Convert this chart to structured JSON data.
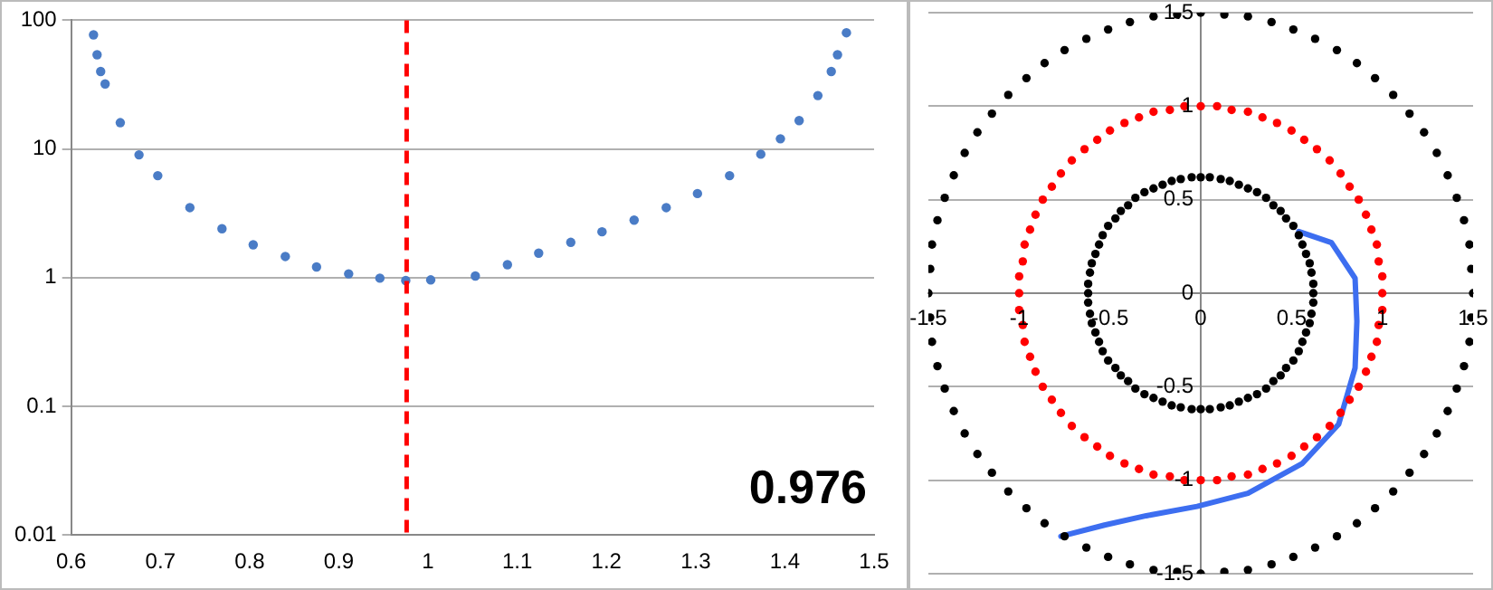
{
  "chart_data": [
    {
      "type": "scatter",
      "log": "y",
      "grid": "y",
      "legend": false,
      "xlim": [
        0.6,
        1.5
      ],
      "xticks": [
        0.6,
        0.7,
        0.8,
        0.9,
        1,
        1.1,
        1.2,
        1.3,
        1.4,
        1.5
      ],
      "ylim": [
        0.01,
        100
      ],
      "yticks": [
        0.01,
        0.1,
        1,
        10,
        100
      ],
      "series": [
        {
          "color": "#4a7cc6",
          "marker": "circle",
          "x": [
            0.625,
            0.629,
            0.633,
            0.638,
            0.655,
            0.676,
            0.697,
            0.733,
            0.769,
            0.804,
            0.84,
            0.875,
            0.911,
            0.946,
            0.975,
            1.003,
            1.053,
            1.089,
            1.124,
            1.16,
            1.195,
            1.231,
            1.267,
            1.302,
            1.338,
            1.373,
            1.395,
            1.416,
            1.437,
            1.452,
            1.459,
            1.469
          ],
          "values": [
            77,
            54,
            40,
            32,
            16,
            9,
            6.2,
            3.5,
            2.4,
            1.8,
            1.46,
            1.21,
            1.07,
            0.99,
            0.95,
            0.96,
            1.03,
            1.26,
            1.55,
            1.88,
            2.27,
            2.8,
            3.5,
            4.5,
            6.2,
            9.1,
            12,
            16.6,
            26,
            40,
            54,
            80
          ]
        }
      ],
      "ref_lines": [
        {
          "axis": "x",
          "value": 0.976,
          "color": "#ff0000",
          "line_style": "dashed"
        }
      ],
      "annotations": [
        "0.976"
      ]
    },
    {
      "type": "scatter",
      "grid": "y",
      "legend": false,
      "xlim": [
        -1.5,
        1.5
      ],
      "xticks": [
        -1.5,
        -1,
        -0.5,
        0,
        0.5,
        1,
        1.5
      ],
      "ylim": [
        -1.5,
        1.5
      ],
      "yticks": [
        -1.5,
        -1,
        -0.5,
        0,
        0.5,
        1,
        1.5
      ],
      "series": [
        {
          "type": "scatter",
          "color": "#000000",
          "marker": "circle",
          "x": [
            1.5,
            1.49,
            1.48,
            1.45,
            1.41,
            1.36,
            1.3,
            1.23,
            1.15,
            1.06,
            0.96,
            0.86,
            0.75,
            0.63,
            0.51,
            0.39,
            0.26,
            0.13,
            0,
            -0.13,
            -0.26,
            -0.39,
            -0.51,
            -0.63,
            -0.75,
            -0.86,
            -0.96,
            -1.06,
            -1.15,
            -1.23,
            -1.3,
            -1.36,
            -1.41,
            -1.45,
            -1.48,
            -1.49,
            -1.5,
            -1.49,
            -1.48,
            -1.45,
            -1.41,
            -1.36,
            -1.3,
            -1.23,
            -1.15,
            -1.06,
            -0.96,
            -0.86,
            -0.75,
            -0.63,
            -0.51,
            -0.39,
            -0.26,
            -0.13,
            0,
            0.13,
            0.26,
            0.39,
            0.51,
            0.63,
            0.75,
            0.86,
            0.96,
            1.06,
            1.15,
            1.23,
            1.3,
            1.36,
            1.41,
            1.45,
            1.48,
            1.49
          ],
          "values": [
            0,
            0.13,
            0.26,
            0.39,
            0.51,
            0.63,
            0.75,
            0.86,
            0.96,
            1.06,
            1.15,
            1.23,
            1.3,
            1.36,
            1.41,
            1.45,
            1.48,
            1.49,
            1.5,
            1.49,
            1.48,
            1.45,
            1.41,
            1.36,
            1.3,
            1.23,
            1.15,
            1.06,
            0.96,
            0.86,
            0.75,
            0.63,
            0.51,
            0.39,
            0.26,
            0.13,
            0,
            -0.13,
            -0.26,
            -0.39,
            -0.51,
            -0.63,
            -0.75,
            -0.86,
            -0.96,
            -1.06,
            -1.15,
            -1.23,
            -1.3,
            -1.36,
            -1.41,
            -1.45,
            -1.48,
            -1.49,
            -1.5,
            -1.49,
            -1.48,
            -1.45,
            -1.41,
            -1.36,
            -1.3,
            -1.23,
            -1.15,
            -1.06,
            -0.96,
            -0.86,
            -0.75,
            -0.63,
            -0.51,
            -0.39,
            -0.26,
            -0.13
          ]
        },
        {
          "type": "scatter",
          "color": "#ff0000",
          "marker": "circle",
          "x": [
            1,
            1,
            0.98,
            0.97,
            0.94,
            0.91,
            0.87,
            0.82,
            0.77,
            0.71,
            0.64,
            0.57,
            0.5,
            0.42,
            0.34,
            0.26,
            0.17,
            0.09,
            0,
            -0.09,
            -0.17,
            -0.26,
            -0.34,
            -0.42,
            -0.5,
            -0.57,
            -0.64,
            -0.71,
            -0.77,
            -0.82,
            -0.87,
            -0.91,
            -0.94,
            -0.97,
            -0.98,
            -1,
            -1,
            -1,
            -0.98,
            -0.97,
            -0.94,
            -0.91,
            -0.87,
            -0.82,
            -0.77,
            -0.71,
            -0.64,
            -0.57,
            -0.5,
            -0.42,
            -0.34,
            -0.26,
            -0.17,
            -0.09,
            0,
            0.09,
            0.17,
            0.26,
            0.34,
            0.42,
            0.5,
            0.57,
            0.64,
            0.71,
            0.77,
            0.82,
            0.87,
            0.91,
            0.94,
            0.97,
            0.98,
            1
          ],
          "values": [
            0,
            0.09,
            0.17,
            0.26,
            0.34,
            0.42,
            0.5,
            0.57,
            0.64,
            0.71,
            0.77,
            0.82,
            0.87,
            0.91,
            0.94,
            0.97,
            0.98,
            1,
            1,
            1,
            0.98,
            0.97,
            0.94,
            0.91,
            0.87,
            0.82,
            0.77,
            0.71,
            0.64,
            0.57,
            0.5,
            0.42,
            0.34,
            0.26,
            0.17,
            0.09,
            0,
            -0.09,
            -0.17,
            -0.26,
            -0.34,
            -0.42,
            -0.5,
            -0.57,
            -0.64,
            -0.71,
            -0.77,
            -0.82,
            -0.87,
            -0.91,
            -0.94,
            -0.97,
            -0.98,
            -1,
            -1,
            -1,
            -0.98,
            -0.97,
            -0.94,
            -0.91,
            -0.87,
            -0.82,
            -0.77,
            -0.71,
            -0.64,
            -0.57,
            -0.5,
            -0.42,
            -0.34,
            -0.26,
            -0.17,
            -0.09
          ]
        },
        {
          "type": "scatter",
          "color": "#000000",
          "marker": "circle",
          "x": [
            0.62,
            0.62,
            0.61,
            0.6,
            0.58,
            0.56,
            0.54,
            0.51,
            0.47,
            0.44,
            0.4,
            0.36,
            0.31,
            0.26,
            0.21,
            0.16,
            0.11,
            0.05,
            0,
            -0.05,
            -0.11,
            -0.16,
            -0.21,
            -0.26,
            -0.31,
            -0.36,
            -0.4,
            -0.44,
            -0.47,
            -0.51,
            -0.54,
            -0.56,
            -0.58,
            -0.6,
            -0.61,
            -0.62,
            -0.62,
            -0.62,
            -0.61,
            -0.6,
            -0.58,
            -0.56,
            -0.54,
            -0.51,
            -0.47,
            -0.44,
            -0.4,
            -0.36,
            -0.31,
            -0.26,
            -0.21,
            -0.16,
            -0.11,
            -0.05,
            0,
            0.05,
            0.11,
            0.16,
            0.21,
            0.26,
            0.31,
            0.36,
            0.4,
            0.44,
            0.47,
            0.51,
            0.54,
            0.56,
            0.58,
            0.6,
            0.61,
            0.62
          ],
          "values": [
            0,
            0.05,
            0.11,
            0.16,
            0.21,
            0.26,
            0.31,
            0.36,
            0.4,
            0.44,
            0.47,
            0.51,
            0.54,
            0.56,
            0.58,
            0.6,
            0.61,
            0.62,
            0.62,
            0.62,
            0.61,
            0.6,
            0.58,
            0.56,
            0.54,
            0.51,
            0.47,
            0.44,
            0.4,
            0.36,
            0.31,
            0.26,
            0.21,
            0.16,
            0.11,
            0.05,
            0,
            -0.05,
            -0.11,
            -0.16,
            -0.21,
            -0.26,
            -0.31,
            -0.36,
            -0.4,
            -0.44,
            -0.47,
            -0.51,
            -0.54,
            -0.56,
            -0.58,
            -0.6,
            -0.61,
            -0.62,
            -0.62,
            -0.62,
            -0.61,
            -0.6,
            -0.58,
            -0.56,
            -0.54,
            -0.51,
            -0.47,
            -0.44,
            -0.4,
            -0.36,
            -0.31,
            -0.26,
            -0.21,
            -0.16,
            -0.11,
            -0.05
          ]
        },
        {
          "type": "line",
          "color": "#3d6ef0",
          "marker": "none",
          "line_style": "solid",
          "x": [
            0.54,
            0.72,
            0.85,
            0.86,
            0.85,
            0.76,
            0.56,
            0.26,
            -0.02,
            -0.3,
            -0.53,
            -0.77
          ],
          "values": [
            0.33,
            0.27,
            0.08,
            -0.15,
            -0.4,
            -0.7,
            -0.91,
            -1.07,
            -1.14,
            -1.19,
            -1.24,
            -1.3
          ]
        }
      ]
    }
  ]
}
